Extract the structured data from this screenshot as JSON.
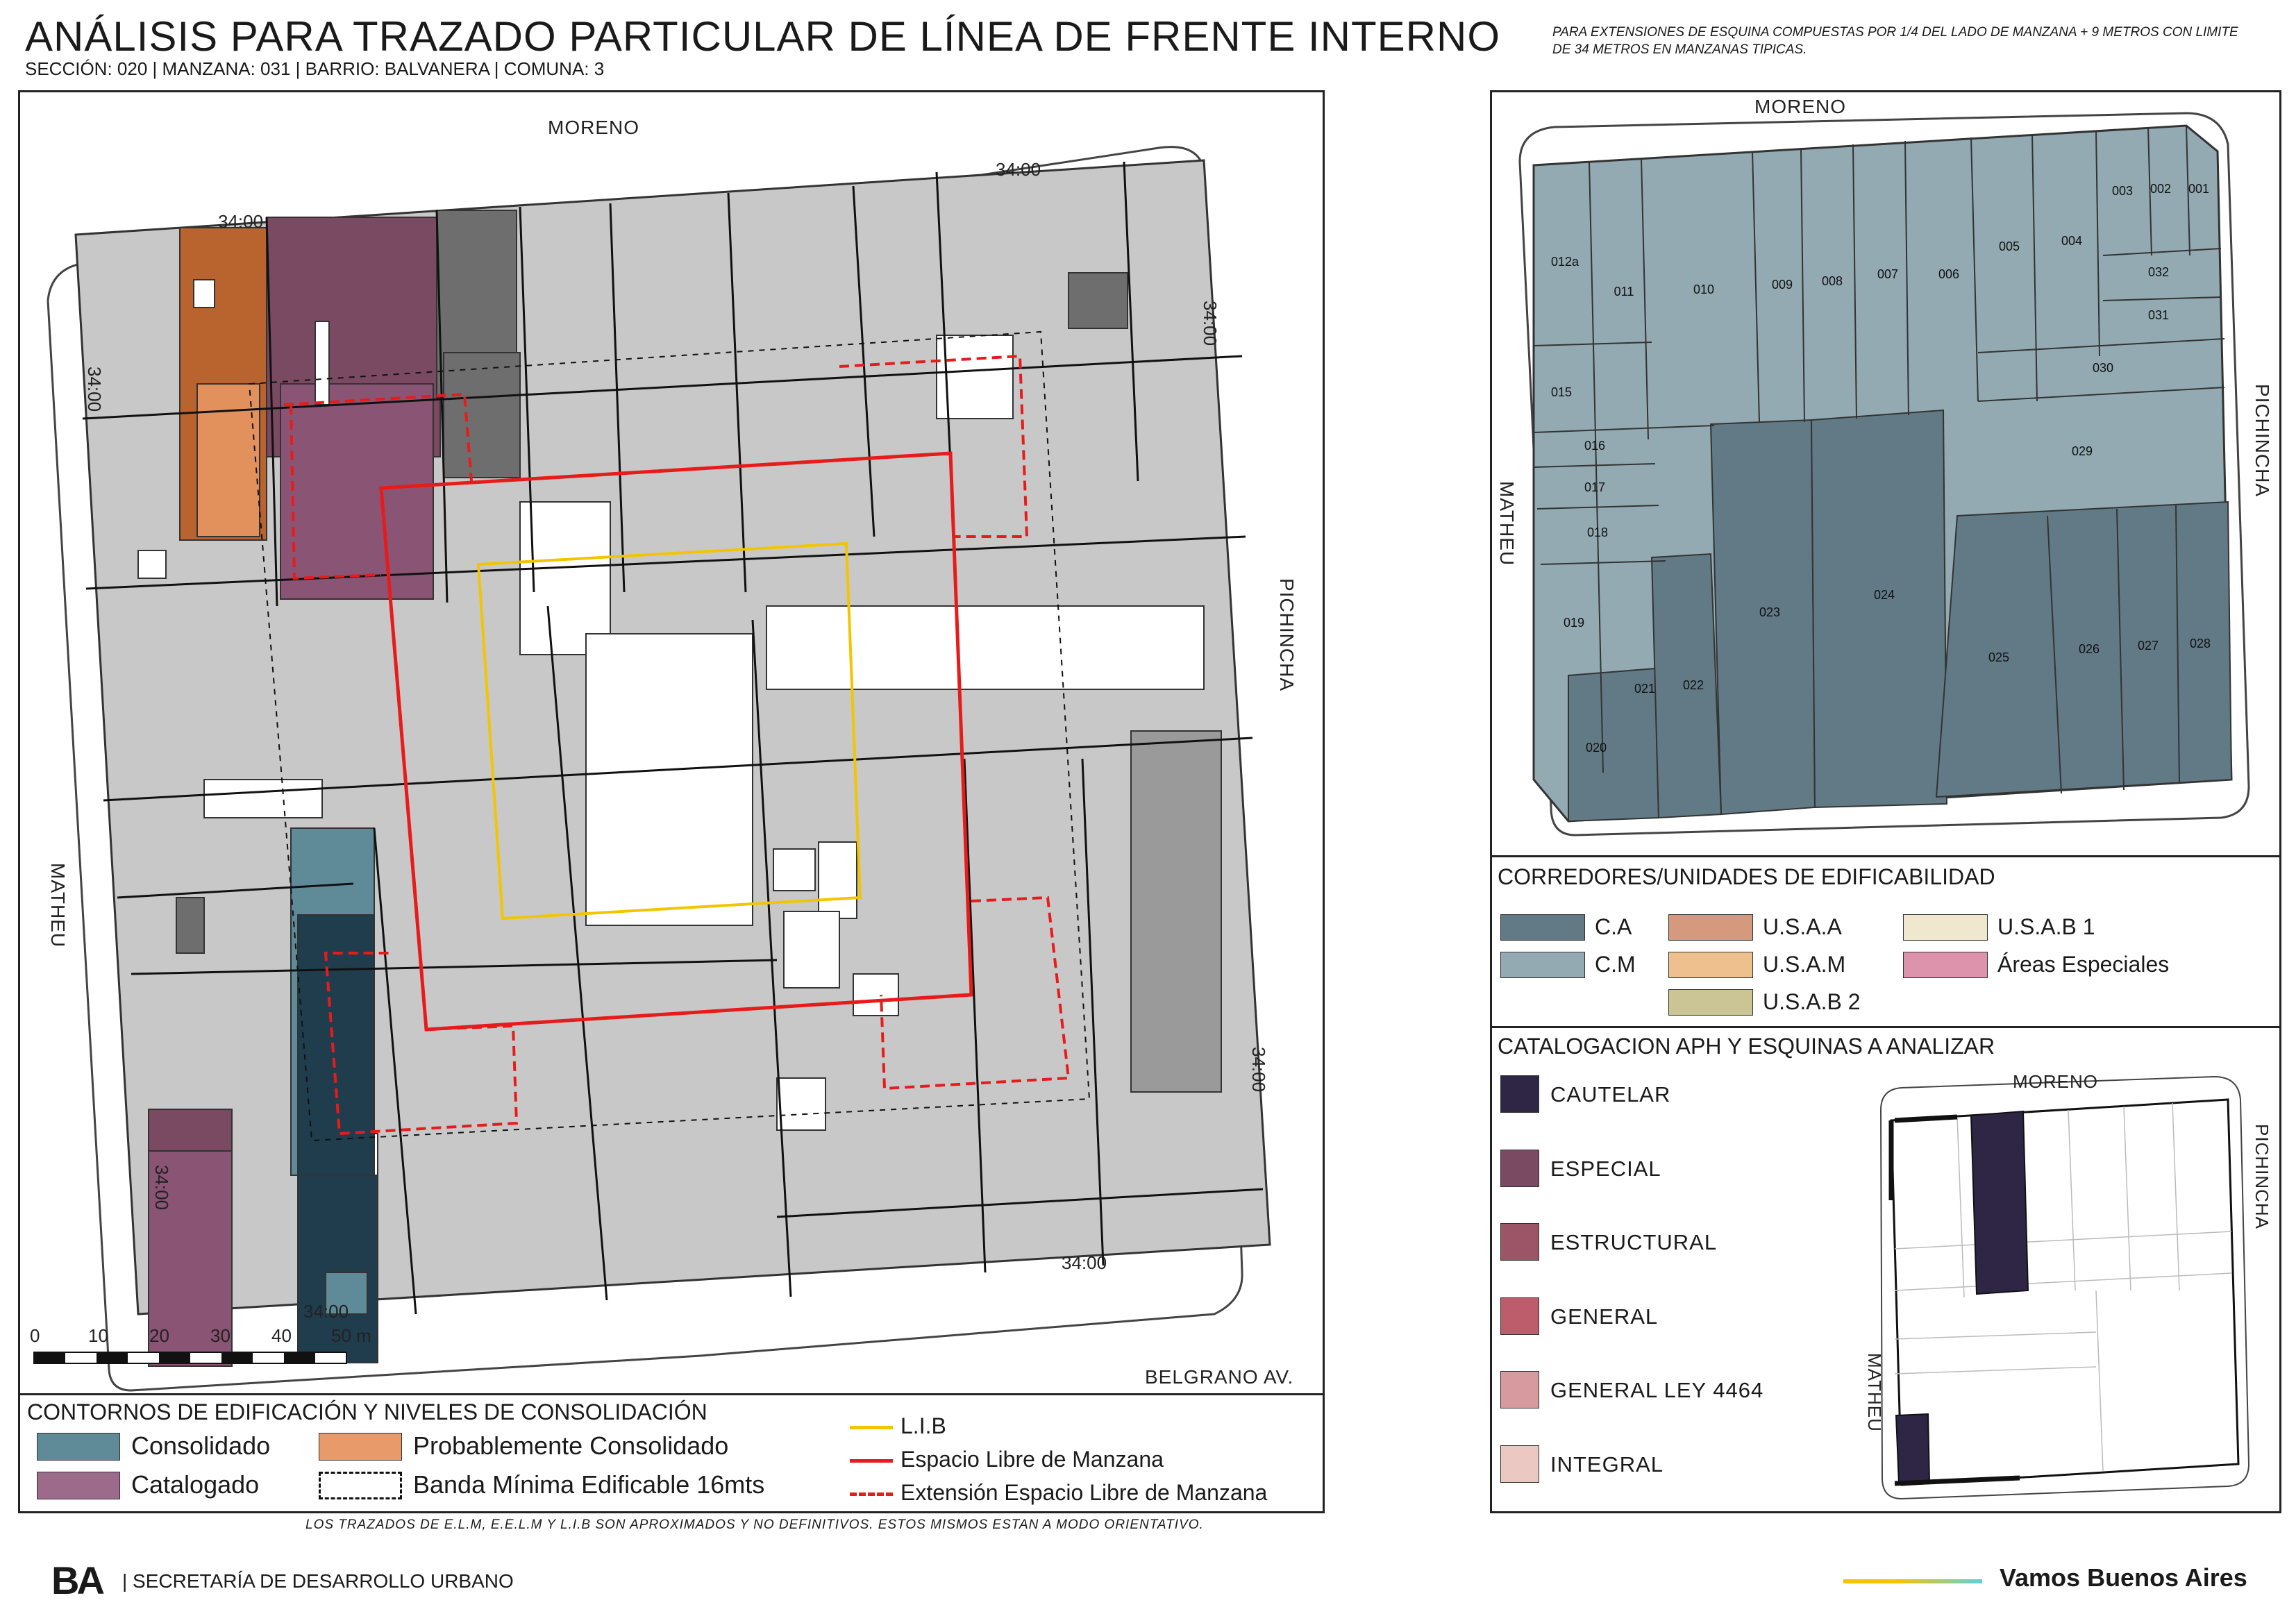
{
  "header": {
    "title": "ANÁLISIS PARA TRAZADO PARTICULAR DE LÍNEA DE FRENTE INTERNO",
    "subtitle": "SECCIÓN: 020 |  MANZANA: 031 | BARRIO: BALVANERA | COMUNA: 3",
    "note": "PARA EXTENSIONES DE ESQUINA COMPUESTAS POR 1/4 DEL LADO DE MANZANA + 9 METROS CON LIMITE DE 34 METROS EN MANZANAS TIPICAS."
  },
  "main_map": {
    "streets": {
      "north": "MORENO",
      "west": "MATHEU",
      "east": "PICHINCHA",
      "south": "BELGRANO AV."
    },
    "dimensions": {
      "nw": "34:00",
      "ne": "34:00",
      "wn": "34:00",
      "en": "34:00",
      "es": "34:00",
      "ws": "34:00",
      "se": "34:00",
      "sw": "34:00"
    },
    "scale": {
      "ticks": [
        "0",
        "10",
        "20",
        "30",
        "40",
        "50 m"
      ]
    }
  },
  "main_legend": {
    "title": "CONTORNOS DE EDIFICACIÓN Y NIVELES DE CONSOLIDACIÓN",
    "items": [
      {
        "label": "Consolidado",
        "color": "#5f8a98"
      },
      {
        "label": "Probablemente Consolidado",
        "color": "#e99a6a"
      },
      {
        "label": "Catalogado",
        "color": "#9c6b8c"
      },
      {
        "label": "Banda Mínima Edificable 16mts",
        "color": "#000000"
      }
    ],
    "lines": [
      {
        "label": "L.I.B",
        "color": "#f2c500"
      },
      {
        "label": "Espacio Libre de Manzana",
        "color": "#e81b1b"
      },
      {
        "label": "Extensión Espacio Libre de Manzana",
        "color": "#e81b1b"
      }
    ]
  },
  "footer": {
    "note": "LOS TRAZADOS DE E.L.M, E.E.L.M Y L.I.B SON APROXIMADOS Y NO DEFINITIVOS. ESTOS MISMOS ESTAN A MODO ORIENTATIVO.",
    "org": "| SECRETARÍA DE DESARROLLO URBANO",
    "logo": "BA",
    "slogan": "Vamos Buenos Aires"
  },
  "right_map": {
    "streets": {
      "north": "MORENO",
      "west": "MATHEU",
      "east": "PICHINCHA"
    },
    "lots": [
      "001",
      "002",
      "003",
      "004",
      "005",
      "006",
      "007",
      "008",
      "009",
      "010",
      "011",
      "012a",
      "015",
      "016",
      "017",
      "018",
      "019",
      "020",
      "021",
      "022",
      "023",
      "024",
      "025",
      "026",
      "027",
      "028",
      "029",
      "030",
      "031",
      "032"
    ]
  },
  "corredores": {
    "title": "CORREDORES/UNIDADES DE EDIFICABILIDAD",
    "items": [
      {
        "label": "C.A",
        "color": "#627a86"
      },
      {
        "label": "C.M",
        "color": "#93aab2"
      },
      {
        "label": "U.S.A.A",
        "color": "#d59a7e"
      },
      {
        "label": "U.S.A.M",
        "color": "#eec08d"
      },
      {
        "label": "U.S.A.B 2",
        "color": "#cbc495"
      },
      {
        "label": "U.S.A.B 1",
        "color": "#efe8cf"
      },
      {
        "label": "Áreas Especiales",
        "color": "#dc93ab"
      }
    ]
  },
  "catalogacion": {
    "title": "CATALOGACION APH Y ESQUINAS A ANALIZAR",
    "items": [
      {
        "label": "CAUTELAR",
        "color": "#2f2646"
      },
      {
        "label": "ESPECIAL",
        "color": "#7a4a62"
      },
      {
        "label": "ESTRUCTURAL",
        "color": "#9c5566"
      },
      {
        "label": "GENERAL",
        "color": "#bd5d6c"
      },
      {
        "label": "GENERAL LEY 4464",
        "color": "#d79a9f"
      },
      {
        "label": "INTEGRAL",
        "color": "#ebc9c2"
      }
    ],
    "inset_streets": {
      "north": "MORENO",
      "west": "MATHEU",
      "east": "PICHINCHA"
    }
  }
}
